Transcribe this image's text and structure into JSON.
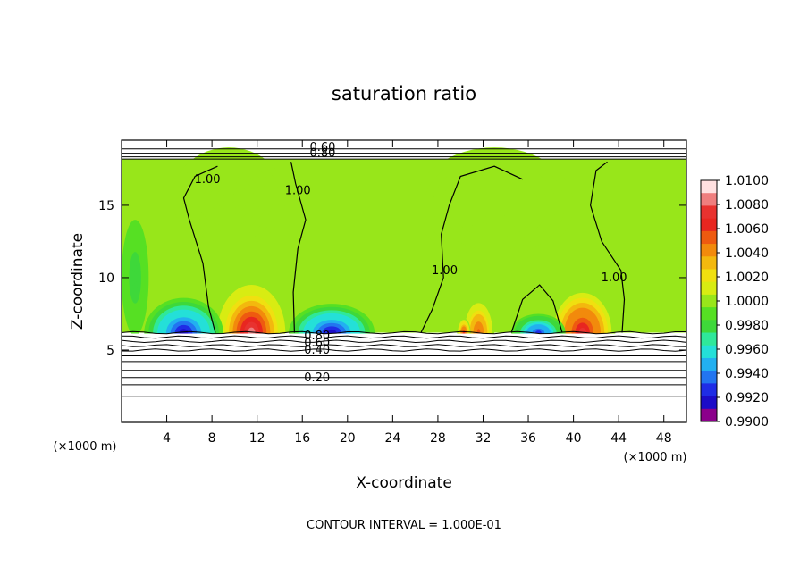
{
  "chart_data": {
    "type": "heatmap",
    "title": "saturation ratio",
    "xlabel": "X-coordinate",
    "ylabel": "Z-coordinate",
    "x_unit": "(×1000 m)",
    "x_ticks": [
      4,
      8,
      12,
      16,
      20,
      24,
      28,
      32,
      36,
      40,
      44,
      48
    ],
    "y_ticks": [
      5,
      10,
      15
    ],
    "xlim": [
      0,
      50
    ],
    "ylim": [
      0,
      19.5
    ],
    "footer": "CONTOUR INTERVAL = 1.000E-01",
    "colorbar": {
      "labels": [
        "1.0100",
        "1.0080",
        "1.0060",
        "1.0040",
        "1.0020",
        "1.0000",
        "0.9980",
        "0.9960",
        "0.9940",
        "0.9920",
        "0.9900"
      ],
      "colors": [
        "#8b008b",
        "#1c0cc8",
        "#1f2de6",
        "#2275f0",
        "#22b0f0",
        "#24e0d8",
        "#2fe89a",
        "#3ed83a",
        "#56e023",
        "#98e61a",
        "#d8ec12",
        "#f0e010",
        "#f3b80e",
        "#f28a0c",
        "#ee5a10",
        "#e82620",
        "#e8322f",
        "#ef7e7e",
        "#ffffff"
      ]
    },
    "contour_labels": [
      {
        "text": "0.60",
        "x": 17.8,
        "z": 19.0
      },
      {
        "text": "0.80",
        "x": 17.8,
        "z": 18.6
      },
      {
        "text": "1.00",
        "x": 7.6,
        "z": 16.8
      },
      {
        "text": "1.00",
        "x": 15.6,
        "z": 16.0
      },
      {
        "text": "1.00",
        "x": 28.6,
        "z": 10.5
      },
      {
        "text": "1.00",
        "x": 43.6,
        "z": 10.0
      },
      {
        "text": "0.80",
        "x": 17.3,
        "z": 6.0
      },
      {
        "text": "0.60",
        "x": 17.3,
        "z": 5.5
      },
      {
        "text": "0.40",
        "x": 17.3,
        "z": 5.0
      },
      {
        "text": "0.20",
        "x": 17.3,
        "z": 3.1
      }
    ],
    "blobs": [
      {
        "x": 11.5,
        "z": 6.2,
        "rx": 3.0,
        "rz": 3.3,
        "v": 1.009
      },
      {
        "x": 40.8,
        "z": 6.2,
        "rx": 2.9,
        "rz": 3.1,
        "v": 1.008
      },
      {
        "x": 31.6,
        "z": 6.2,
        "rx": 1.4,
        "rz": 2.3,
        "v": 1.006
      },
      {
        "x": 30.3,
        "z": 6.2,
        "rx": 0.6,
        "rz": 1.0,
        "v": 1.007
      },
      {
        "x": 5.5,
        "z": 6.2,
        "rx": 3.5,
        "rz": 2.4,
        "v": 0.992
      },
      {
        "x": 18.6,
        "z": 6.2,
        "rx": 3.8,
        "rz": 2.0,
        "v": 0.992
      },
      {
        "x": 36.9,
        "z": 6.2,
        "rx": 2.4,
        "rz": 1.3,
        "v": 0.993
      },
      {
        "x": 1.2,
        "z": 10.0,
        "rx": 1.2,
        "rz": 4.0,
        "v": 0.998
      },
      {
        "x": 9.5,
        "z": 15.5,
        "rx": 5.0,
        "rz": 3.5,
        "v": 1.0006
      },
      {
        "x": 33.0,
        "z": 15.0,
        "rx": 7.0,
        "rz": 4.0,
        "v": 1.0008
      }
    ]
  }
}
